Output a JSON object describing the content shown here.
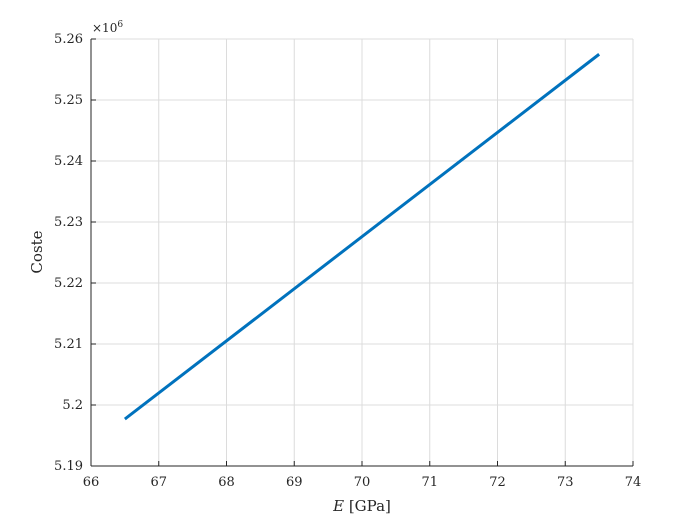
{
  "chart_data": {
    "type": "line",
    "xlabel": "E [GPa]",
    "ylabel": "Coste",
    "xlim": [
      66,
      74
    ],
    "ylim": [
      5.19,
      5.26
    ],
    "y_multiplier_label": "×10",
    "y_multiplier_exponent": "6",
    "grid": true,
    "x_ticks": [
      "66",
      "67",
      "68",
      "69",
      "70",
      "71",
      "72",
      "73",
      "74"
    ],
    "y_ticks": [
      "5.19",
      "5.2",
      "5.21",
      "5.22",
      "5.23",
      "5.24",
      "5.25",
      "5.26"
    ],
    "series": [
      {
        "color": "#0072BD",
        "x": [
          66.5,
          73.5
        ],
        "y": [
          5.1977,
          5.2575
        ]
      }
    ]
  }
}
